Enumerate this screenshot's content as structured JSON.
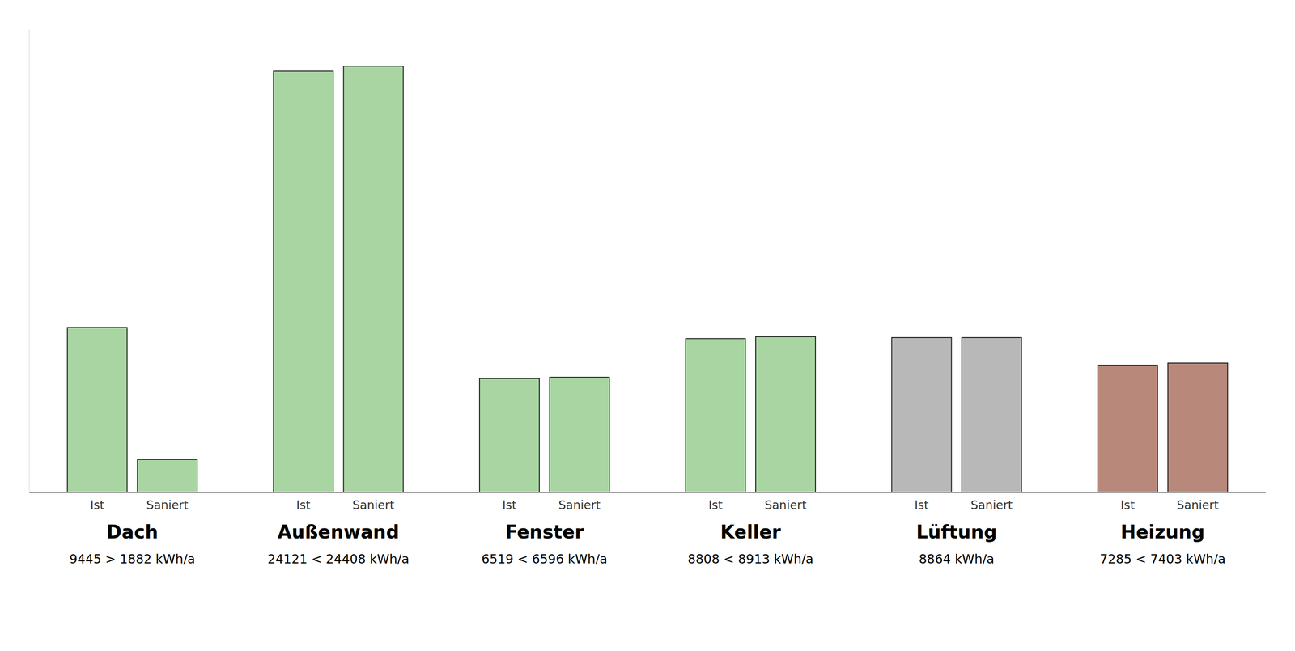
{
  "chart_data": {
    "type": "bar",
    "categories": [
      "Dach",
      "Außenwand",
      "Fenster",
      "Keller",
      "Lüftung",
      "Heizung"
    ],
    "series": [
      {
        "name": "Ist",
        "values": [
          9445,
          24121,
          6519,
          8808,
          8864,
          7285
        ],
        "colors": [
          "#a8d5a2",
          "#a8d5a2",
          "#a8d5a2",
          "#a8d5a2",
          "#b8b8b8",
          "#b8897a"
        ]
      },
      {
        "name": "Saniert",
        "values": [
          1882,
          24408,
          6596,
          8913,
          8864,
          7403
        ],
        "colors": [
          "#a8d5a2",
          "#a8d5a2",
          "#a8d5a2",
          "#a8d5a2",
          "#b8b8b8",
          "#b8897a"
        ]
      }
    ],
    "annotations": [
      "9445 > 1882 kWh/a",
      "24121 < 24408 kWh/a",
      "6519 < 6596 kWh/a",
      "8808 < 8913 kWh/a",
      "8864 kWh/a",
      "7285 < 7403 kWh/a"
    ],
    "ylim": [
      0,
      26520
    ],
    "tick_labels": "x",
    "grid": false
  }
}
